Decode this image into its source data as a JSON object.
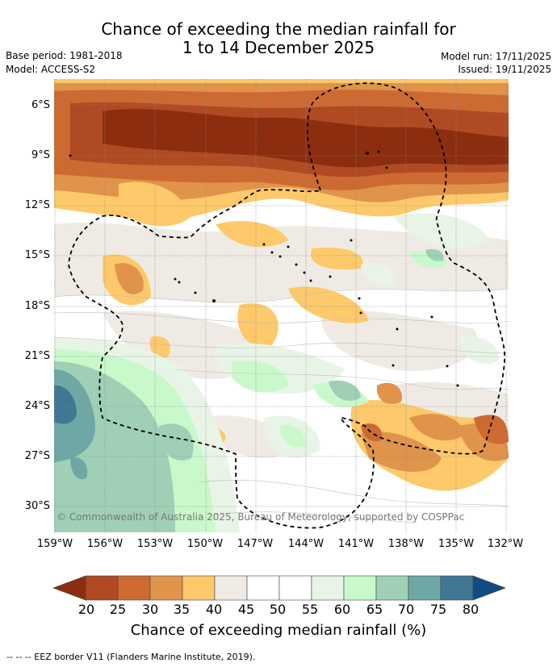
{
  "title_line1": "Chance of exceeding the median rainfall for",
  "title_line2": "1 to 14 December 2025",
  "base_period": "Base period: 1981-2018",
  "model": "Model: ACCESS-S2",
  "model_run": "Model run: 17/11/2025",
  "issued": "Issued: 19/11/2025",
  "copyright": "© Commonwealth of Australia 2025, Bureau of Meteorology, supported by COSPPac",
  "lat_labels": [
    "6°S",
    "9°S",
    "12°S",
    "15°S",
    "18°S",
    "21°S",
    "24°S",
    "27°S",
    "30°S"
  ],
  "lon_labels": [
    "159°W",
    "156°W",
    "153°W",
    "150°W",
    "147°W",
    "144°W",
    "141°W",
    "138°W",
    "135°W",
    "132°W"
  ],
  "colorbar": {
    "labels": [
      "20",
      "25",
      "30",
      "35",
      "40",
      "45",
      "50",
      "55",
      "60",
      "65",
      "70",
      "75",
      "80"
    ],
    "colors": [
      "#8c2d0f",
      "#b04a22",
      "#cc6a32",
      "#e0934a",
      "#fdc96a",
      "#efebe4",
      "#ffffff",
      "#ffffff",
      "#e8f5e6",
      "#c9f9cb",
      "#9fd0b6",
      "#6fa7a5",
      "#3f7795",
      "#114b84"
    ],
    "title": "Chance of exceeding median rainfall (%)"
  },
  "legend_text": "-- -- -- EEZ border V11 (Flanders Marine Institute, 2019)."
}
